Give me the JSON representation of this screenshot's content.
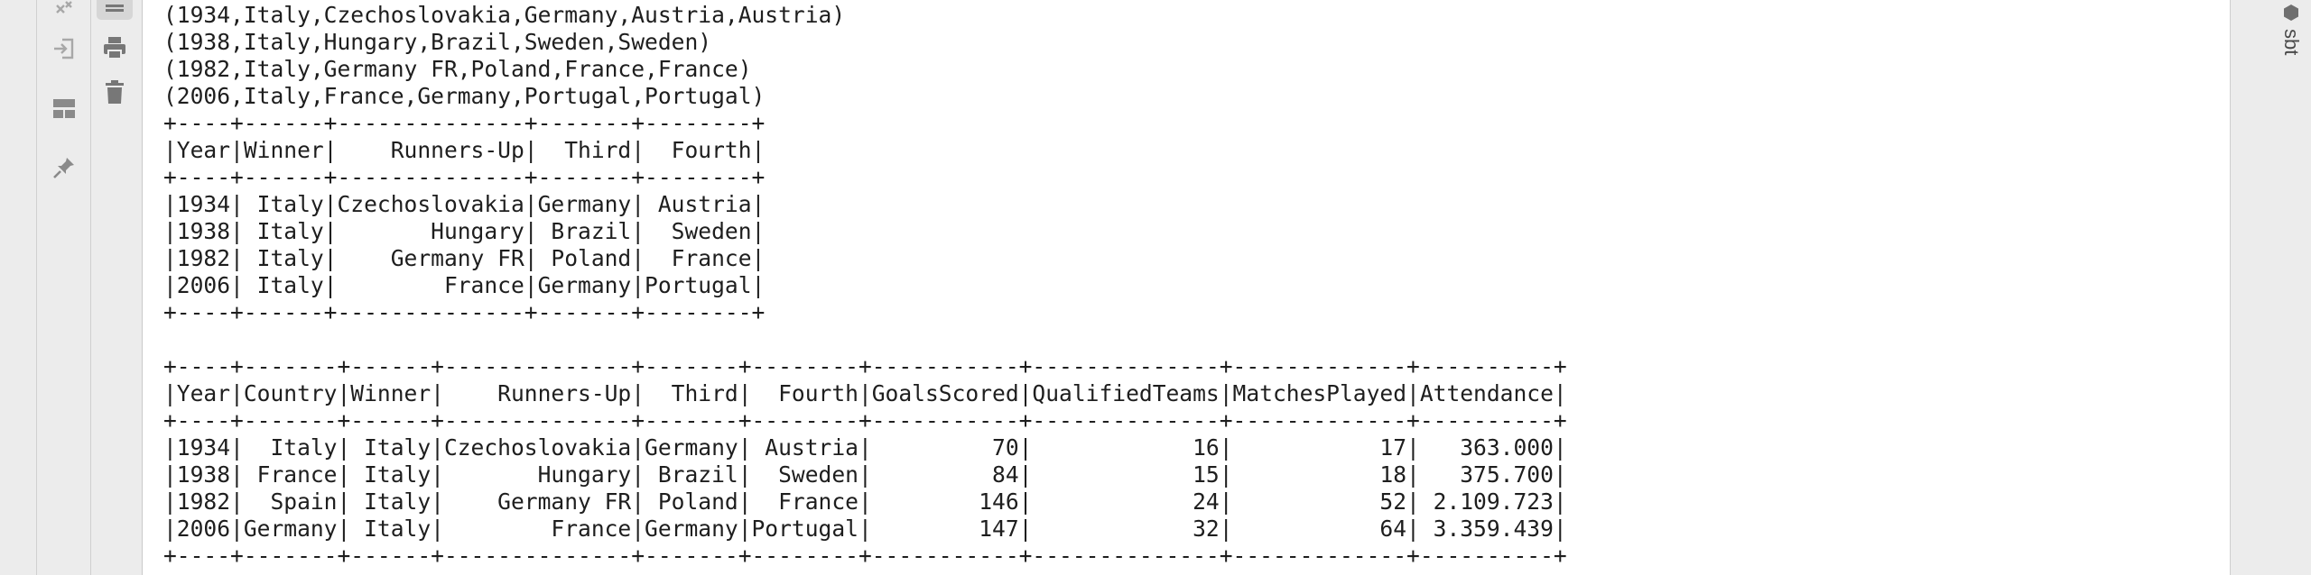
{
  "toolbar_left": {
    "icons": [
      "close-tabs-icon",
      "login-icon",
      "layout-icon",
      "pin-icon"
    ]
  },
  "toolbar_right": {
    "icons": [
      "soft-wrap-icon",
      "print-icon",
      "trash-icon"
    ]
  },
  "side_tab": {
    "label": "sbt"
  },
  "console": {
    "lines": [
      "(1934,Italy,Czechoslovakia,Germany,Austria,Austria)",
      "(1938,Italy,Hungary,Brazil,Sweden,Sweden)",
      "(1982,Italy,Germany FR,Poland,France,France)",
      "(2006,Italy,France,Germany,Portugal,Portugal)",
      "+----+------+--------------+-------+--------+",
      "|Year|Winner|    Runners-Up|  Third|  Fourth|",
      "+----+------+--------------+-------+--------+",
      "|1934| Italy|Czechoslovakia|Germany| Austria|",
      "|1938| Italy|       Hungary| Brazil|  Sweden|",
      "|1982| Italy|    Germany FR| Poland|  France|",
      "|2006| Italy|        France|Germany|Portugal|",
      "+----+------+--------------+-------+--------+",
      "",
      "+----+-------+------+--------------+-------+--------+-----------+--------------+-------------+----------+",
      "|Year|Country|Winner|    Runners-Up|  Third|  Fourth|GoalsScored|QualifiedTeams|MatchesPlayed|Attendance|",
      "+----+-------+------+--------------+-------+--------+-----------+--------------+-------------+----------+",
      "|1934|  Italy| Italy|Czechoslovakia|Germany| Austria|         70|            16|           17|   363.000|",
      "|1938| France| Italy|       Hungary| Brazil|  Sweden|         84|            15|           18|   375.700|",
      "|1982|  Spain| Italy|    Germany FR| Poland|  France|        146|            24|           52| 2.109.723|",
      "|2006|Germany| Italy|        France|Germany|Portugal|        147|            32|           64| 3.359.439|",
      "+----+-------+------+--------------+-------+--------+-----------+--------------+-------------+----------+"
    ]
  }
}
